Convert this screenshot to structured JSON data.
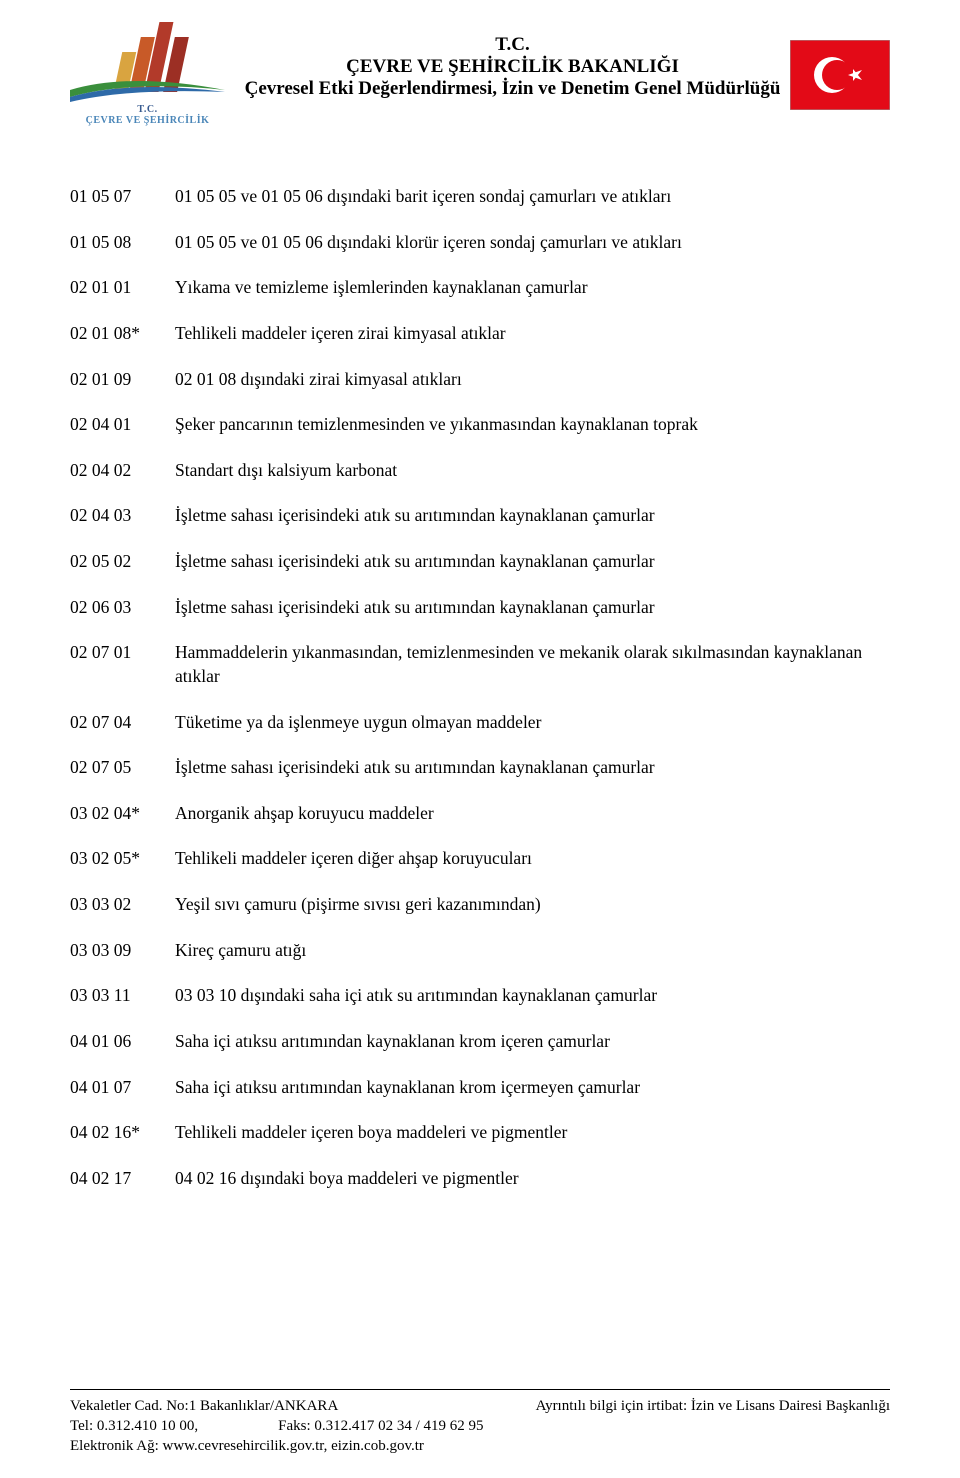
{
  "header": {
    "logo_line1": "T.C.",
    "logo_line2": "ÇEVRE VE ŞEHİRCİLİK",
    "title_l1": "T.C.",
    "title_l2": "ÇEVRE VE ŞEHİRCİLİK BAKANLIĞI",
    "title_l3": "Çevresel Etki Değerlendirmesi, İzin ve Denetim Genel Müdürlüğü",
    "flag_bg": "#e30a17",
    "flag_moon": "#ffffff",
    "swoosh_green": "#3a8f3c",
    "swoosh_blue": "#2e6aa8"
  },
  "rows": [
    {
      "code": "01 05 07",
      "desc": "01 05 05 ve 01 05 06 dışındaki barit içeren sondaj çamurları ve atıkları"
    },
    {
      "code": "01 05 08",
      "desc": "01 05 05 ve 01 05 06 dışındaki klorür içeren sondaj çamurları ve atıkları"
    },
    {
      "code": "02 01 01",
      "desc": "Yıkama ve temizleme işlemlerinden kaynaklanan çamurlar"
    },
    {
      "code": "02 01 08*",
      "desc": "Tehlikeli maddeler içeren zirai kimyasal atıklar"
    },
    {
      "code": "02 01 09",
      "desc": "02 01 08 dışındaki zirai kimyasal atıkları"
    },
    {
      "code": "02 04 01",
      "desc": "Şeker pancarının temizlenmesinden ve yıkanmasından kaynaklanan toprak"
    },
    {
      "code": "02 04 02",
      "desc": "Standart dışı kalsiyum karbonat"
    },
    {
      "code": "02 04 03",
      "desc": "İşletme sahası içerisindeki atık su arıtımından kaynaklanan çamurlar"
    },
    {
      "code": "02 05 02",
      "desc": "İşletme sahası içerisindeki atık su arıtımından kaynaklanan çamurlar"
    },
    {
      "code": "02 06 03",
      "desc": "İşletme sahası içerisindeki atık su arıtımından kaynaklanan çamurlar"
    },
    {
      "code": "02 07 01",
      "desc": "Hammaddelerin yıkanmasından, temizlenmesinden ve mekanik olarak sıkılmasından kaynaklanan atıklar"
    },
    {
      "code": "02 07 04",
      "desc": "Tüketime ya da işlenmeye uygun olmayan maddeler"
    },
    {
      "code": "02 07 05",
      "desc": "İşletme sahası içerisindeki atık su arıtımından kaynaklanan çamurlar"
    },
    {
      "code": "03 02 04*",
      "desc": "Anorganik ahşap koruyucu maddeler"
    },
    {
      "code": "03 02 05*",
      "desc": "Tehlikeli maddeler içeren diğer ahşap koruyucuları"
    },
    {
      "code": "03 03 02",
      "desc": "Yeşil sıvı çamuru (pişirme sıvısı geri kazanımından)"
    },
    {
      "code": "03 03 09",
      "desc": "Kireç çamuru atığı"
    },
    {
      "code": "03 03 11",
      "desc": "03 03 10 dışındaki saha içi atık su arıtımından kaynaklanan çamurlar"
    },
    {
      "code": "04 01 06",
      "desc": "Saha içi atıksu arıtımından kaynaklanan krom içeren çamurlar"
    },
    {
      "code": "04 01 07",
      "desc": "Saha içi atıksu arıtımından kaynaklanan krom içermeyen çamurlar"
    },
    {
      "code": "04 02 16*",
      "desc": "Tehlikeli maddeler içeren boya maddeleri ve pigmentler"
    },
    {
      "code": "04 02 17",
      "desc": "04 02 16 dışındaki boya maddeleri ve pigmentler"
    }
  ],
  "footer": {
    "addr": "Vekaletler Cad. No:1 Bakanlıklar/ANKARA",
    "contact_right": "Ayrıntılı bilgi için irtibat: İzin ve Lisans Dairesi Başkanlığı",
    "tel_label": "Tel: 0.312.410 10 00,",
    "fax_label": "Faks: 0.312.417 02 34 / 419 62 95",
    "web": "Elektronik Ağ: www.cevresehircilik.gov.tr, eizin.cob.gov.tr"
  }
}
